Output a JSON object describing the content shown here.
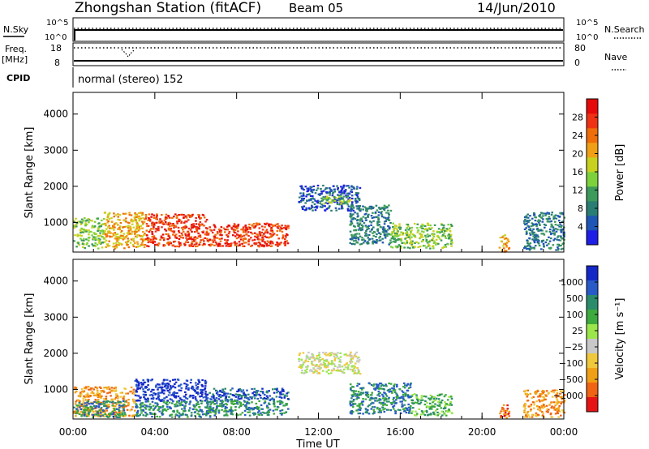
{
  "header": {
    "station": "Zhongshan Station (fitACF)",
    "beam": "Beam 05",
    "date": "14/Jun/2010"
  },
  "status_panels": {
    "nsky_label": "N.Sky",
    "nsearch_label": "N.Search",
    "freq_label_1": "Freq.",
    "freq_label_2": "[MHz]",
    "nave_label": "Nave",
    "cpid_label": "CPID",
    "nsky_ticks": [
      "10^5",
      "10^0"
    ],
    "nsearch_ticks": [
      "10^5",
      "10^0"
    ],
    "freq_ticks": [
      "18",
      "8"
    ],
    "nave_ticks": [
      "80",
      "0"
    ],
    "cpid_text": "normal (stereo) 152"
  },
  "chart_data": [
    {
      "type": "heatmap",
      "quantity": "Power",
      "ylabel": "Slant Range [km]",
      "xlabel": "",
      "x_ticks": [
        "00:00",
        "04:00",
        "08:00",
        "12:00",
        "16:00",
        "20:00",
        "00:00"
      ],
      "xlim_hours": [
        0,
        24
      ],
      "ylim": [
        180,
        4600
      ],
      "y_ticks": [
        1000,
        2000,
        3000,
        4000
      ],
      "colorbar": {
        "label": "Power [dB]",
        "ticks": [
          "4",
          "8",
          "12",
          "16",
          "20",
          "24",
          "28"
        ],
        "colors": [
          "#1e1ee6",
          "#1f55b4",
          "#2a7d73",
          "#3c9a5a",
          "#7dd23c",
          "#c8d21e",
          "#f0a014",
          "#f06e0a",
          "#f03214",
          "#e60a0a"
        ]
      },
      "regions": [
        {
          "t0": 0.0,
          "t1": 1.5,
          "r0": 300,
          "r1": 1150,
          "level": 4
        },
        {
          "t0": 1.5,
          "t1": 3.5,
          "r0": 300,
          "r1": 1300,
          "level": 6
        },
        {
          "t0": 3.5,
          "t1": 6.5,
          "r0": 350,
          "r1": 1250,
          "level": 8
        },
        {
          "t0": 6.5,
          "t1": 10.5,
          "r0": 350,
          "r1": 1000,
          "level": 8
        },
        {
          "t0": 11.0,
          "t1": 14.0,
          "r0": 1350,
          "r1": 2050,
          "level": 1
        },
        {
          "t0": 12.0,
          "t1": 13.5,
          "r0": 1500,
          "r1": 1750,
          "level": 4
        },
        {
          "t0": 13.5,
          "t1": 15.5,
          "r0": 400,
          "r1": 1500,
          "level": 2
        },
        {
          "t0": 15.5,
          "t1": 18.5,
          "r0": 300,
          "r1": 1000,
          "level": 4
        },
        {
          "t0": 20.8,
          "t1": 21.3,
          "r0": 200,
          "r1": 700,
          "level": 6
        },
        {
          "t0": 22.0,
          "t1": 24.0,
          "r0": 250,
          "r1": 1300,
          "level": 2
        }
      ]
    },
    {
      "type": "heatmap",
      "quantity": "Velocity",
      "ylabel": "Slant Range [km]",
      "xlabel": "Time UT",
      "x_ticks": [
        "00:00",
        "04:00",
        "08:00",
        "12:00",
        "16:00",
        "20:00",
        "00:00"
      ],
      "xlim_hours": [
        0,
        24
      ],
      "ylim": [
        180,
        4600
      ],
      "y_ticks": [
        1000,
        2000,
        3000,
        4000
      ],
      "colorbar": {
        "label": "Velocity [m s⁻¹]",
        "ticks": [
          "1000",
          "500",
          "100",
          "25",
          "−25",
          "−100",
          "−500",
          "−1000"
        ],
        "colors": [
          "#1428c8",
          "#285ac8",
          "#2a8c6a",
          "#3caa3c",
          "#9be64b",
          "#c8c8c8",
          "#f0c83c",
          "#f0a014",
          "#f06414",
          "#e61414"
        ]
      },
      "regions": [
        {
          "t0": 0.0,
          "t1": 3.0,
          "r0": 250,
          "r1": 1100,
          "level": 7
        },
        {
          "t0": 0.0,
          "t1": 2.5,
          "r0": 250,
          "r1": 700,
          "level": 2
        },
        {
          "t0": 3.0,
          "t1": 6.5,
          "r0": 700,
          "r1": 1300,
          "level": 0
        },
        {
          "t0": 3.0,
          "t1": 7.0,
          "r0": 250,
          "r1": 700,
          "level": 2
        },
        {
          "t0": 6.5,
          "t1": 10.5,
          "r0": 700,
          "r1": 1050,
          "level": 1
        },
        {
          "t0": 6.5,
          "t1": 10.5,
          "r0": 300,
          "r1": 700,
          "level": 2
        },
        {
          "t0": 11.0,
          "t1": 14.0,
          "r0": 1450,
          "r1": 2050,
          "level": 5
        },
        {
          "t0": 13.5,
          "t1": 16.5,
          "r0": 350,
          "r1": 1200,
          "level": 2
        },
        {
          "t0": 16.5,
          "t1": 18.5,
          "r0": 300,
          "r1": 900,
          "level": 3
        },
        {
          "t0": 20.8,
          "t1": 21.3,
          "r0": 200,
          "r1": 600,
          "level": 8
        },
        {
          "t0": 22.0,
          "t1": 24.0,
          "r0": 250,
          "r1": 1000,
          "level": 7
        }
      ]
    }
  ]
}
